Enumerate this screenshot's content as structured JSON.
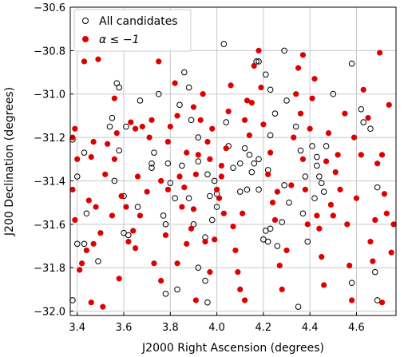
{
  "chart_data": {
    "type": "scatter",
    "xlabel": "J2000 Right Ascension (degrees)",
    "ylabel": "J200 Declination (degrees)",
    "xlim": [
      3.37,
      4.77
    ],
    "ylim": [
      -32.02,
      -30.6
    ],
    "xticks": [
      3.4,
      3.6,
      3.8,
      4.0,
      4.2,
      4.4,
      4.6
    ],
    "xtick_labels": [
      "3.4",
      "3.6",
      "3.8",
      "4.0",
      "4.2",
      "4.4",
      "4.6"
    ],
    "yticks": [
      -30.6,
      -30.8,
      -31.0,
      -31.2,
      -31.4,
      -31.6,
      -31.8,
      -32.0
    ],
    "ytick_labels": [
      "−30.6",
      "−30.8",
      "−31.0",
      "−31.2",
      "−31.4",
      "−31.6",
      "−31.8",
      "−32.0"
    ],
    "grid": true,
    "legend_position": "top-left",
    "series": [
      {
        "name": "All candidates",
        "marker": "open-circle",
        "color": "#000000",
        "points": [
          [
            3.38,
            -31.21
          ],
          [
            3.43,
            -31.27
          ],
          [
            3.4,
            -31.38
          ],
          [
            3.44,
            -31.55
          ],
          [
            3.4,
            -31.69
          ],
          [
            3.43,
            -31.69
          ],
          [
            3.38,
            -31.95
          ],
          [
            3.49,
            -31.77
          ],
          [
            3.54,
            -31.15
          ],
          [
            3.55,
            -31.11
          ],
          [
            3.57,
            -30.95
          ],
          [
            3.58,
            -30.97
          ],
          [
            3.61,
            -31.15
          ],
          [
            3.58,
            -31.26
          ],
          [
            3.56,
            -31.4
          ],
          [
            3.6,
            -31.47
          ],
          [
            3.6,
            -31.64
          ],
          [
            3.66,
            -31.52
          ],
          [
            3.67,
            -31.03
          ],
          [
            3.72,
            -31.32
          ],
          [
            3.75,
            -31.0
          ],
          [
            3.73,
            -31.27
          ],
          [
            3.77,
            -31.56
          ],
          [
            3.78,
            -31.6
          ],
          [
            3.79,
            -31.32
          ],
          [
            3.8,
            -31.41
          ],
          [
            3.82,
            -31.48
          ],
          [
            3.84,
            -31.05
          ],
          [
            3.86,
            -30.9
          ],
          [
            3.88,
            -30.97
          ],
          [
            3.89,
            -31.12
          ],
          [
            3.92,
            -31.2
          ],
          [
            3.96,
            -31.37
          ],
          [
            3.97,
            -31.47
          ],
          [
            3.99,
            -31.4
          ],
          [
            4.0,
            -31.52
          ],
          [
            3.98,
            -31.58
          ],
          [
            3.9,
            -31.6
          ],
          [
            3.88,
            -31.48
          ],
          [
            4.03,
            -30.77
          ],
          [
            4.04,
            -31.13
          ],
          [
            4.05,
            -31.24
          ],
          [
            4.07,
            -31.34
          ],
          [
            4.1,
            -31.45
          ],
          [
            4.12,
            -31.25
          ],
          [
            4.13,
            -31.44
          ],
          [
            4.17,
            -30.85
          ],
          [
            4.18,
            -30.85
          ],
          [
            4.21,
            -30.91
          ],
          [
            4.23,
            -30.98
          ],
          [
            4.25,
            -31.09
          ],
          [
            4.23,
            -31.19
          ],
          [
            4.18,
            -31.3
          ],
          [
            4.15,
            -31.36
          ],
          [
            4.16,
            -31.32
          ],
          [
            4.14,
            -31.28
          ],
          [
            4.22,
            -31.35
          ],
          [
            4.29,
            -31.42
          ],
          [
            4.31,
            -31.5
          ],
          [
            4.28,
            -31.59
          ],
          [
            4.23,
            -31.62
          ],
          [
            4.2,
            -31.67
          ],
          [
            4.22,
            -31.68
          ],
          [
            4.26,
            -31.7
          ],
          [
            4.29,
            -30.8
          ],
          [
            4.3,
            -31.03
          ],
          [
            4.34,
            -31.15
          ],
          [
            4.36,
            -31.26
          ],
          [
            4.38,
            -31.38
          ],
          [
            4.37,
            -31.55
          ],
          [
            4.41,
            -31.24
          ],
          [
            4.43,
            -31.29
          ],
          [
            4.44,
            -31.38
          ],
          [
            4.45,
            -31.41
          ],
          [
            4.46,
            -31.45
          ],
          [
            4.42,
            -31.48
          ],
          [
            4.43,
            -31.33
          ],
          [
            4.47,
            -31.24
          ],
          [
            4.5,
            -31.0
          ],
          [
            4.58,
            -30.86
          ],
          [
            4.62,
            -31.07
          ],
          [
            4.63,
            -31.13
          ],
          [
            4.66,
            -31.16
          ],
          [
            4.69,
            -31.43
          ],
          [
            4.68,
            -31.82
          ],
          [
            4.69,
            -31.95
          ],
          [
            4.58,
            -31.87
          ],
          [
            4.39,
            -31.68
          ],
          [
            4.35,
            -31.98
          ],
          [
            3.95,
            -31.86
          ],
          [
            3.96,
            -31.96
          ],
          [
            3.83,
            -31.9
          ],
          [
            3.92,
            -31.8
          ],
          [
            3.78,
            -31.92
          ],
          [
            3.62,
            -31.65
          ],
          [
            3.92,
            -31.31
          ],
          [
            3.85,
            -31.33
          ],
          [
            4.1,
            -31.32
          ],
          [
            3.95,
            -31.66
          ],
          [
            3.72,
            -31.34
          ],
          [
            4.18,
            -31.44
          ],
          [
            4.0,
            -31.46
          ],
          [
            4.21,
            -31.63
          ]
        ]
      },
      {
        "name": "α ≤ −1",
        "marker": "filled-circle",
        "color": "#dd0000",
        "points": [
          [
            3.38,
            -31.2
          ],
          [
            3.39,
            -31.16
          ],
          [
            3.4,
            -31.3
          ],
          [
            3.38,
            -31.44
          ],
          [
            3.39,
            -31.58
          ],
          [
            3.41,
            -31.81
          ],
          [
            3.42,
            -31.78
          ],
          [
            3.44,
            -31.72
          ],
          [
            3.46,
            -31.96
          ],
          [
            3.47,
            -31.22
          ],
          [
            3.45,
            -31.49
          ],
          [
            3.47,
            -31.69
          ],
          [
            3.46,
            -31.29
          ],
          [
            3.51,
            -31.98
          ],
          [
            3.5,
            -31.64
          ],
          [
            3.52,
            -31.37
          ],
          [
            3.53,
            -31.23
          ],
          [
            3.55,
            -31.56
          ],
          [
            3.56,
            -31.3
          ],
          [
            3.56,
            -31.02
          ],
          [
            3.57,
            -31.18
          ],
          [
            3.59,
            -31.47
          ],
          [
            3.61,
            -31.52
          ],
          [
            3.63,
            -31.13
          ],
          [
            3.65,
            -31.16
          ],
          [
            3.68,
            -31.15
          ],
          [
            3.66,
            -31.38
          ],
          [
            3.64,
            -31.63
          ],
          [
            3.62,
            -31.68
          ],
          [
            3.65,
            -31.71
          ],
          [
            3.67,
            -31.56
          ],
          [
            3.7,
            -31.45
          ],
          [
            3.71,
            -31.2
          ],
          [
            3.73,
            -31.78
          ],
          [
            3.76,
            -31.86
          ],
          [
            3.78,
            -31.65
          ],
          [
            3.79,
            -31.44
          ],
          [
            3.8,
            -31.15
          ],
          [
            3.79,
            -31.22
          ],
          [
            3.82,
            -30.95
          ],
          [
            3.83,
            -31.1
          ],
          [
            3.84,
            -31.38
          ],
          [
            3.85,
            -31.52
          ],
          [
            3.86,
            -31.43
          ],
          [
            3.87,
            -31.69
          ],
          [
            3.89,
            -31.62
          ],
          [
            3.9,
            -31.53
          ],
          [
            3.91,
            -31.37
          ],
          [
            3.92,
            -31.28
          ],
          [
            3.91,
            -31.95
          ],
          [
            3.9,
            -31.06
          ],
          [
            3.93,
            -31.12
          ],
          [
            3.94,
            -31.0
          ],
          [
            3.96,
            -31.22
          ],
          [
            3.97,
            -31.3
          ],
          [
            3.98,
            -31.16
          ],
          [
            3.99,
            -31.67
          ],
          [
            4.0,
            -31.44
          ],
          [
            4.01,
            -31.48
          ],
          [
            4.02,
            -31.38
          ],
          [
            4.03,
            -31.55
          ],
          [
            4.04,
            -31.25
          ],
          [
            4.05,
            -31.08
          ],
          [
            4.06,
            -30.96
          ],
          [
            4.07,
            -31.61
          ],
          [
            4.08,
            -31.72
          ],
          [
            4.09,
            -31.82
          ],
          [
            4.1,
            -31.9
          ],
          [
            4.11,
            -31.55
          ],
          [
            4.12,
            -31.12
          ],
          [
            4.13,
            -31.03
          ],
          [
            4.14,
            -31.19
          ],
          [
            4.15,
            -31.04
          ],
          [
            4.16,
            -30.87
          ],
          [
            4.18,
            -30.8
          ],
          [
            4.19,
            -30.97
          ],
          [
            4.2,
            -31.14
          ],
          [
            4.22,
            -31.37
          ],
          [
            4.23,
            -31.27
          ],
          [
            4.24,
            -31.5
          ],
          [
            4.25,
            -31.58
          ],
          [
            4.26,
            -31.45
          ],
          [
            4.27,
            -31.79
          ],
          [
            4.28,
            -31.9
          ],
          [
            4.3,
            -31.72
          ],
          [
            4.32,
            -31.42
          ],
          [
            4.33,
            -31.2
          ],
          [
            4.34,
            -31.0
          ],
          [
            4.35,
            -30.88
          ],
          [
            4.36,
            -31.09
          ],
          [
            4.37,
            -31.3
          ],
          [
            4.38,
            -31.44
          ],
          [
            4.39,
            -31.6
          ],
          [
            4.4,
            -31.16
          ],
          [
            4.41,
            -31.02
          ],
          [
            4.42,
            -30.93
          ],
          [
            4.43,
            -31.56
          ],
          [
            4.44,
            -31.62
          ],
          [
            4.45,
            -31.75
          ],
          [
            4.46,
            -31.88
          ],
          [
            4.47,
            -31.31
          ],
          [
            4.48,
            -31.18
          ],
          [
            4.49,
            -31.51
          ],
          [
            4.5,
            -31.56
          ],
          [
            4.51,
            -31.36
          ],
          [
            4.52,
            -31.28
          ],
          [
            4.53,
            -31.44
          ],
          [
            4.55,
            -31.09
          ],
          [
            4.56,
            -31.6
          ],
          [
            4.57,
            -31.79
          ],
          [
            4.58,
            -31.95
          ],
          [
            4.59,
            -31.2
          ],
          [
            4.6,
            -31.48
          ],
          [
            4.62,
            -31.28
          ],
          [
            4.63,
            -30.98
          ],
          [
            4.65,
            -31.11
          ],
          [
            4.66,
            -31.68
          ],
          [
            4.67,
            -31.77
          ],
          [
            4.68,
            -31.58
          ],
          [
            4.69,
            -31.32
          ],
          [
            4.7,
            -30.81
          ],
          [
            4.71,
            -31.28
          ],
          [
            4.72,
            -31.46
          ],
          [
            4.73,
            -31.55
          ],
          [
            4.74,
            -31.05
          ],
          [
            4.75,
            -31.73
          ],
          [
            4.76,
            -31.6
          ],
          [
            4.71,
            -31.96
          ],
          [
            3.43,
            -30.85
          ],
          [
            3.49,
            -30.84
          ],
          [
            3.75,
            -30.85
          ],
          [
            3.72,
            -31.12
          ],
          [
            4.37,
            -30.82
          ],
          [
            4.12,
            -31.95
          ],
          [
            4.02,
            -31.33
          ],
          [
            3.97,
            -31.82
          ],
          [
            3.95,
            -31.68
          ],
          [
            3.87,
            -31.27
          ],
          [
            3.83,
            -31.78
          ],
          [
            3.76,
            -31.4
          ],
          [
            3.58,
            -31.85
          ],
          [
            3.48,
            -31.52
          ]
        ]
      }
    ]
  }
}
